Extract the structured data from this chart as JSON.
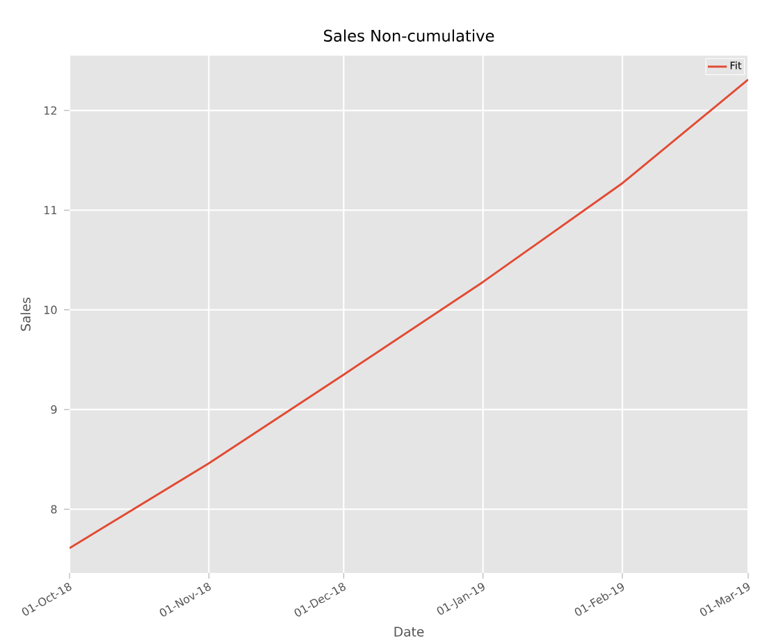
{
  "chart_data": {
    "type": "line",
    "title": "Sales Non-cumulative",
    "xlabel": "Date",
    "ylabel": "Sales",
    "x": [
      "2018-10-01",
      "2018-11-01",
      "2018-12-01",
      "2019-01-01",
      "2019-02-01",
      "2019-03-01"
    ],
    "series": [
      {
        "name": "Fit",
        "color": "#e24a33",
        "values": [
          7.61,
          8.46,
          9.35,
          10.28,
          11.27,
          12.31
        ]
      }
    ],
    "xlim": [
      "2018-10-01",
      "2019-03-01"
    ],
    "xticks": [
      {
        "value": "2018-10-01",
        "label": "01-Oct-18"
      },
      {
        "value": "2018-11-01",
        "label": "01-Nov-18"
      },
      {
        "value": "2018-12-01",
        "label": "01-Dec-18"
      },
      {
        "value": "2019-01-01",
        "label": "01-Jan-19"
      },
      {
        "value": "2019-02-01",
        "label": "01-Feb-19"
      },
      {
        "value": "2019-03-01",
        "label": "01-Mar-19"
      }
    ],
    "ylim": [
      7.36,
      12.55
    ],
    "yticks": [
      8,
      9,
      10,
      11,
      12
    ],
    "grid": true,
    "legend": "top right",
    "marker": "none",
    "line_style": "solid"
  }
}
